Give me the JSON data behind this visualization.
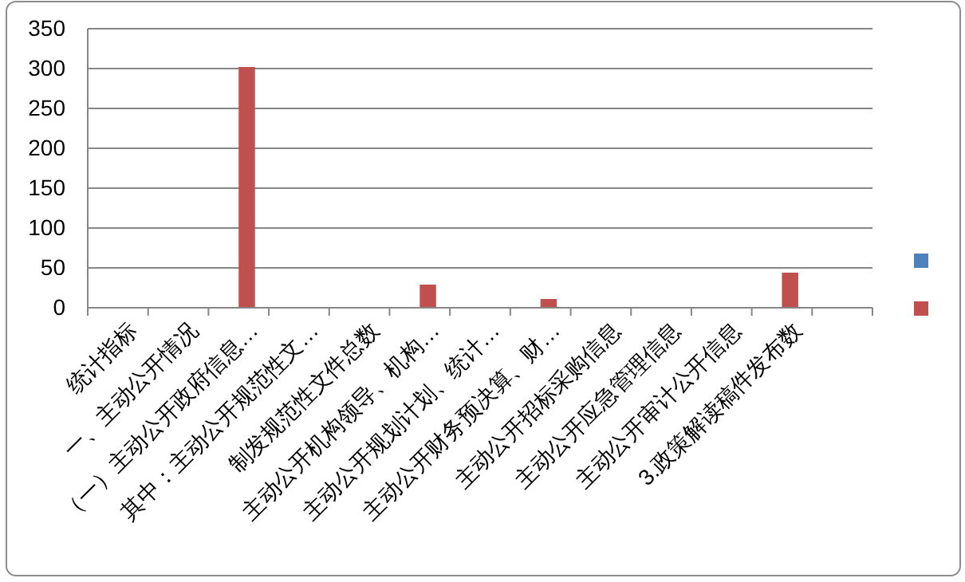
{
  "chart_data": {
    "type": "bar",
    "categories": [
      "统计指标",
      "一、主动公开情况",
      "（一）主动公开政府信息…",
      "其中：主动公开规范性文…",
      "制发规范性文件总数",
      "主动公开机构领导、机构…",
      "主动公开规划计划、统计…",
      "主动公开财务预决算、财…",
      "主动公开招标采购信息",
      "主动公开应急管理信息",
      "主动公开审计公开信息",
      "3.政策解读稿件发布数",
      null
    ],
    "series": [
      {
        "color": "#4f81bd",
        "values": [
          null,
          null,
          null,
          null,
          null,
          null,
          null,
          null,
          null,
          null,
          null,
          null,
          null
        ]
      },
      {
        "color": "#c0504d",
        "values": [
          null,
          null,
          302,
          null,
          null,
          29,
          null,
          11,
          null,
          null,
          null,
          44,
          null
        ]
      }
    ],
    "ylim": [
      0,
      350
    ],
    "yticks": [
      0,
      50,
      100,
      150,
      200,
      250,
      300,
      350
    ],
    "grid": "y"
  }
}
